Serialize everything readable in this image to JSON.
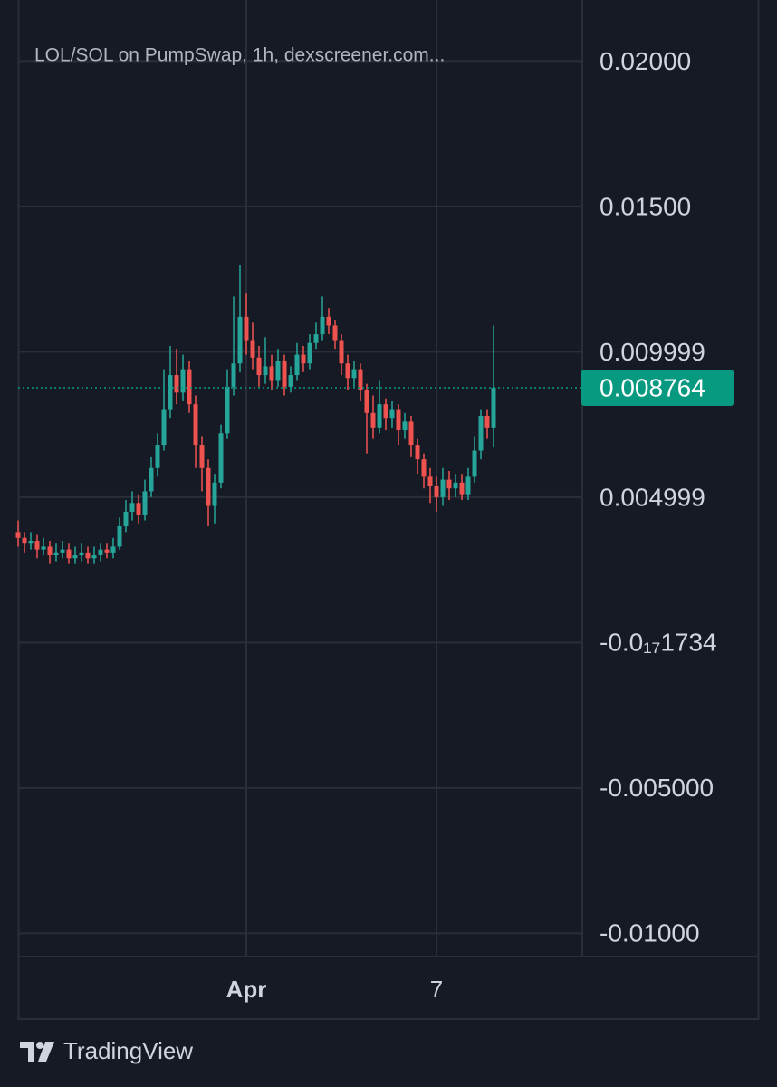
{
  "chart_data": {
    "type": "candlestick",
    "title": "LOL/SOL on PumpSwap, 1h, dexscreener.com...",
    "categories": [
      null,
      null,
      null,
      null,
      null,
      null,
      null,
      null,
      null,
      null,
      null,
      null,
      null,
      null,
      null,
      null,
      null,
      null,
      null,
      null,
      null,
      null,
      null,
      null,
      null,
      null,
      null,
      null,
      null,
      null,
      null,
      null,
      null,
      null,
      null,
      null,
      "Apr",
      null,
      null,
      null,
      null,
      null,
      null,
      null,
      null,
      null,
      null,
      null,
      null,
      null,
      null,
      null,
      null,
      null,
      null,
      null,
      null,
      null,
      null,
      null,
      null,
      null,
      null,
      null,
      null,
      null,
      "7",
      null,
      null,
      null,
      null,
      null,
      null,
      null,
      null,
      null
    ],
    "open": [
      0.0038,
      0.0036,
      0.0034,
      0.0035,
      0.0032,
      0.0033,
      0.003,
      0.0031,
      0.0032,
      0.0029,
      0.003,
      0.0031,
      0.0029,
      0.003,
      0.0032,
      0.0031,
      0.0033,
      0.004,
      0.0045,
      0.0048,
      0.0044,
      0.0052,
      0.006,
      0.0068,
      0.008,
      0.0092,
      0.0086,
      0.0094,
      0.0082,
      0.0068,
      0.006,
      0.0047,
      0.0055,
      0.0072,
      0.0088,
      0.0096,
      0.0112,
      0.0104,
      0.0098,
      0.0092,
      0.0095,
      0.009,
      0.0097,
      0.0088,
      0.0092,
      0.0099,
      0.0096,
      0.0103,
      0.0106,
      0.0112,
      0.0109,
      0.0104,
      0.0096,
      0.0091,
      0.0094,
      0.0087,
      0.0079,
      0.0074,
      0.0082,
      0.0077,
      0.008,
      0.0073,
      0.0076,
      0.0068,
      0.0063,
      0.0057,
      0.0054,
      0.005,
      0.0056,
      0.0053,
      0.0055,
      0.0051,
      0.0057,
      0.0066,
      0.0078,
      0.0074
    ],
    "high": [
      0.0042,
      0.0038,
      0.0038,
      0.0037,
      0.0036,
      0.0035,
      0.0034,
      0.0035,
      0.0034,
      0.0033,
      0.0034,
      0.0033,
      0.0033,
      0.0034,
      0.0034,
      0.0036,
      0.0043,
      0.0049,
      0.0052,
      0.0051,
      0.0056,
      0.0064,
      0.0072,
      0.0094,
      0.0102,
      0.0101,
      0.0099,
      0.0097,
      0.0085,
      0.0071,
      0.0063,
      0.0058,
      0.0075,
      0.0094,
      0.0119,
      0.013,
      0.012,
      0.011,
      0.0102,
      0.0105,
      0.0099,
      0.0101,
      0.0099,
      0.0095,
      0.0103,
      0.0102,
      0.0106,
      0.011,
      0.0119,
      0.0115,
      0.0111,
      0.0106,
      0.0099,
      0.0097,
      0.0096,
      0.0089,
      0.0085,
      0.009,
      0.0084,
      0.0083,
      0.0082,
      0.0079,
      0.0078,
      0.007,
      0.0065,
      0.006,
      0.0057,
      0.006,
      0.0059,
      0.0058,
      0.0058,
      0.006,
      0.0071,
      0.008,
      0.008,
      0.0109
    ],
    "low": [
      0.0033,
      0.0031,
      0.0032,
      0.0029,
      0.003,
      0.0027,
      0.0028,
      0.0029,
      0.0027,
      0.0027,
      0.0028,
      0.0027,
      0.0027,
      0.0028,
      0.0029,
      0.0029,
      0.0032,
      0.0038,
      0.0042,
      0.0041,
      0.0042,
      0.005,
      0.0057,
      0.0066,
      0.0077,
      0.0082,
      0.0083,
      0.0079,
      0.006,
      0.0052,
      0.004,
      0.0041,
      0.0053,
      0.007,
      0.0085,
      0.0093,
      0.0099,
      0.0094,
      0.0088,
      0.0089,
      0.0087,
      0.0088,
      0.0085,
      0.0086,
      0.009,
      0.0093,
      0.0094,
      0.0101,
      0.0104,
      0.0106,
      0.0101,
      0.0092,
      0.0087,
      0.0088,
      0.0083,
      0.0065,
      0.007,
      0.0072,
      0.0073,
      0.0074,
      0.0068,
      0.007,
      0.0064,
      0.0058,
      0.0053,
      0.0048,
      0.0045,
      0.0047,
      0.0049,
      0.005,
      0.0049,
      0.0049,
      0.0055,
      0.0063,
      0.007,
      0.0067
    ],
    "close": [
      0.0036,
      0.0034,
      0.0035,
      0.0032,
      0.0033,
      0.003,
      0.0031,
      0.0032,
      0.0029,
      0.003,
      0.0031,
      0.0029,
      0.003,
      0.0032,
      0.0031,
      0.0033,
      0.004,
      0.0045,
      0.0048,
      0.0044,
      0.0052,
      0.006,
      0.0068,
      0.008,
      0.0092,
      0.0086,
      0.0094,
      0.0082,
      0.0068,
      0.006,
      0.0047,
      0.0055,
      0.0072,
      0.0088,
      0.0096,
      0.0112,
      0.0104,
      0.0098,
      0.0092,
      0.0095,
      0.009,
      0.0097,
      0.0088,
      0.0092,
      0.0099,
      0.0096,
      0.0103,
      0.0106,
      0.0112,
      0.0109,
      0.0104,
      0.0096,
      0.0091,
      0.0094,
      0.0087,
      0.0079,
      0.0074,
      0.0082,
      0.0077,
      0.008,
      0.0073,
      0.0076,
      0.0068,
      0.0063,
      0.0057,
      0.0054,
      0.005,
      0.0056,
      0.0053,
      0.0055,
      0.0051,
      0.0057,
      0.0066,
      0.0078,
      0.0074,
      0.008764
    ],
    "up_color": "#26a69a",
    "down_color": "#ef5350",
    "ylim": [
      -0.0108,
      0.0221
    ],
    "yticks": [
      {
        "value": 0.02,
        "label": "0.02000"
      },
      {
        "value": 0.015,
        "label": "0.01500"
      },
      0.009999,
      0.004999,
      {
        "value": -1.734e-18,
        "label": "-0.0₁₇1734"
      },
      {
        "value": -0.005,
        "label": "-0.005000"
      },
      {
        "value": -0.01,
        "label": "-0.01000"
      }
    ],
    "grid": true,
    "last_price": 0.008764,
    "last_price_color": "#089981"
  },
  "footer": {
    "brand": "TradingView"
  }
}
